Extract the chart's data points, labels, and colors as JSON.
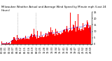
{
  "title": "Milwaukee Weather Actual and Average Wind Speed by Minute mph (Last 24 Hours)",
  "background_color": "#ffffff",
  "plot_bg_color": "#ffffff",
  "bar_color": "#ff0000",
  "line_color": "#0000ff",
  "grid_color": "#888888",
  "n_points": 1440,
  "ylim": [
    0,
    25
  ],
  "yticks": [
    0,
    5,
    10,
    15,
    20,
    25
  ],
  "ytick_labels": [
    "0",
    "5",
    "10",
    "15",
    "20",
    "25"
  ],
  "n_xticks": 24,
  "seed": 42,
  "avg_window": 90,
  "title_fontsize": 2.8,
  "tick_fontsize": 2.5,
  "figwidth": 1.6,
  "figheight": 0.87,
  "dpi": 100
}
